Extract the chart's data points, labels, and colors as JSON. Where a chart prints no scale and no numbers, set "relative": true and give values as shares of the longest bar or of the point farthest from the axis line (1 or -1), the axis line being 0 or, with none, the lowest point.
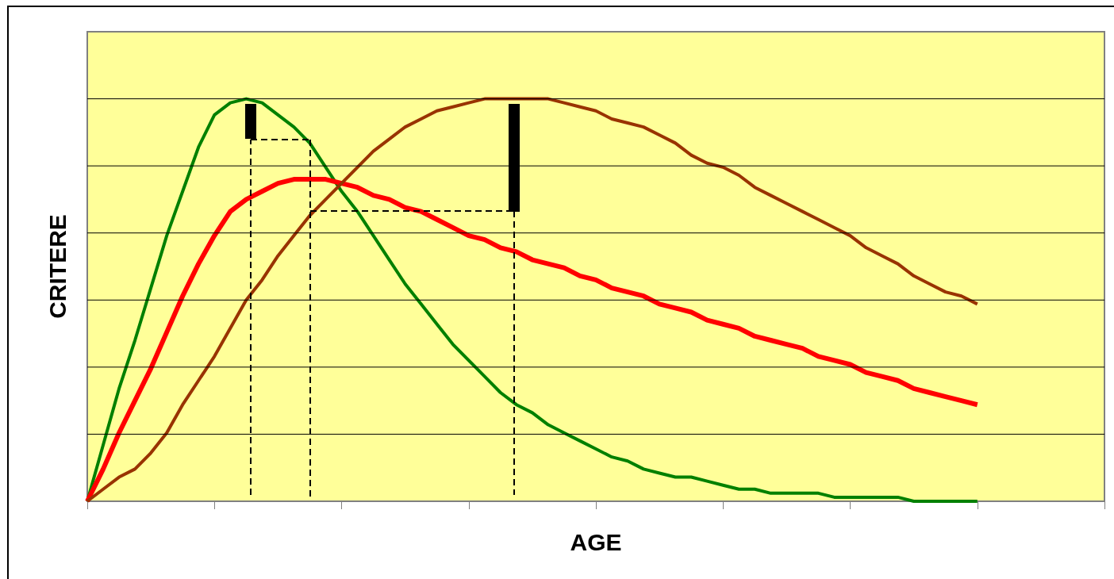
{
  "chart_data": {
    "type": "line",
    "relative": true,
    "xlabel": "AGE",
    "ylabel": "CRITERE",
    "grid": "y",
    "marker": "none",
    "line_style": "solid",
    "categories": [
      null,
      null,
      null,
      null,
      null,
      null,
      null,
      null,
      null,
      null,
      null,
      null,
      null,
      null,
      null,
      null,
      null,
      null,
      null,
      null,
      null,
      null,
      null,
      null,
      null,
      null,
      null,
      null,
      null,
      null,
      null,
      null,
      null,
      null,
      null,
      null,
      null,
      null,
      null,
      null,
      null,
      null,
      null,
      null,
      null,
      null,
      null,
      null,
      null,
      null,
      null,
      null,
      null,
      null,
      null,
      null,
      null,
      null,
      null,
      null,
      null,
      null,
      null,
      null,
      null
    ],
    "series": [
      {
        "color": "#008000",
        "values": [
          0,
          0.14,
          0.28,
          0.4,
          0.53,
          0.66,
          0.77,
          0.88,
          0.96,
          0.99,
          1,
          0.99,
          0.96,
          0.93,
          0.89,
          0.83,
          0.77,
          0.72,
          0.66,
          0.6,
          0.54,
          0.49,
          0.44,
          0.39,
          0.35,
          0.31,
          0.27,
          0.24,
          0.22,
          0.19,
          0.17,
          0.15,
          0.13,
          0.11,
          0.1,
          0.08,
          0.07,
          0.06,
          0.06,
          0.05,
          0.04,
          0.03,
          0.03,
          0.02,
          0.02,
          0.02,
          0.02,
          0.01,
          0.01,
          0.01,
          0.01,
          0.01,
          0,
          0,
          0,
          0,
          0,
          null,
          null,
          null,
          null,
          null,
          null,
          null,
          null
        ]
      },
      {
        "color": "#ff0000",
        "values": [
          0,
          0.08,
          0.17,
          0.25,
          0.33,
          0.42,
          0.51,
          0.59,
          0.66,
          0.72,
          0.75,
          0.77,
          0.79,
          0.8,
          0.8,
          0.8,
          0.79,
          0.78,
          0.76,
          0.75,
          0.73,
          0.72,
          0.7,
          0.68,
          0.66,
          0.65,
          0.63,
          0.62,
          0.6,
          0.59,
          0.58,
          0.56,
          0.55,
          0.53,
          0.52,
          0.51,
          0.49,
          0.48,
          0.47,
          0.45,
          0.44,
          0.43,
          0.41,
          0.4,
          0.39,
          0.38,
          0.36,
          0.35,
          0.34,
          0.32,
          0.31,
          0.3,
          0.28,
          0.27,
          0.26,
          0.25,
          0.24,
          null,
          null,
          null,
          null,
          null,
          null,
          null,
          null
        ]
      },
      {
        "color": "#993300",
        "values": [
          0,
          0.03,
          0.06,
          0.08,
          0.12,
          0.17,
          0.24,
          0.3,
          0.36,
          0.43,
          0.5,
          0.55,
          0.61,
          0.66,
          0.71,
          0.75,
          0.79,
          0.83,
          0.87,
          0.9,
          0.93,
          0.95,
          0.97,
          0.98,
          0.99,
          1,
          1,
          1,
          1,
          1,
          0.99,
          0.98,
          0.97,
          0.95,
          0.94,
          0.93,
          0.91,
          0.89,
          0.86,
          0.84,
          0.83,
          0.81,
          0.78,
          0.76,
          0.74,
          0.72,
          0.7,
          0.68,
          0.66,
          0.63,
          0.61,
          0.59,
          0.56,
          0.54,
          0.52,
          0.51,
          0.49,
          null,
          null,
          null,
          null,
          null,
          null,
          null,
          null
        ]
      }
    ]
  }
}
